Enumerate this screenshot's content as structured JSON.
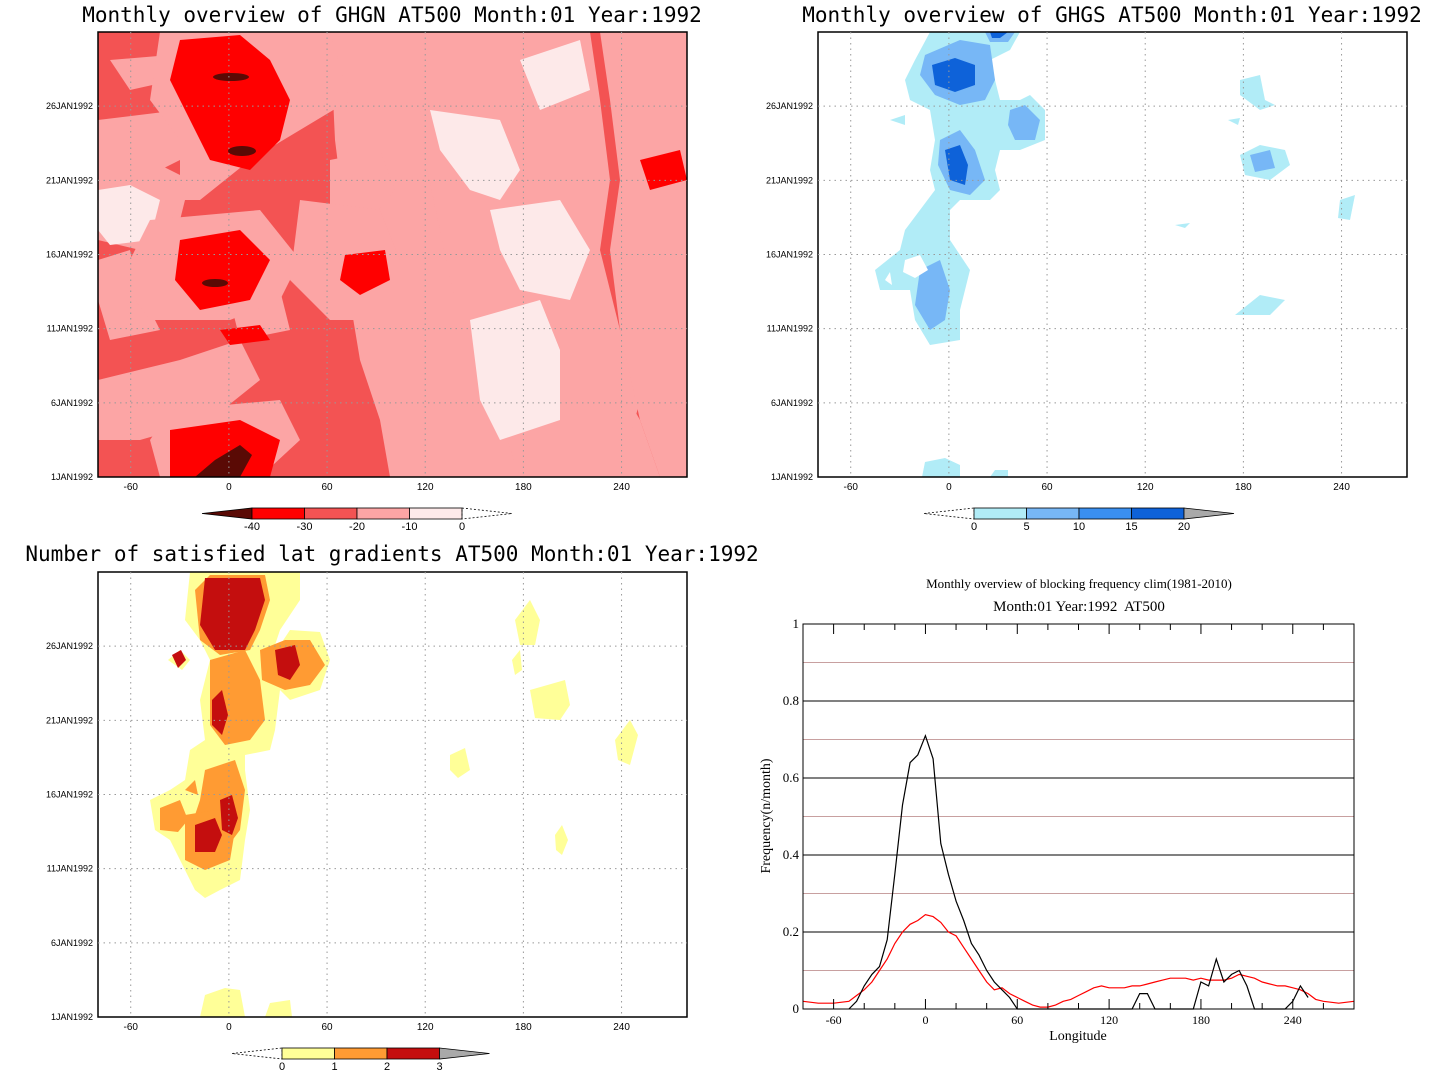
{
  "colors": {
    "ghgn": [
      "#5a0a05",
      "#ff0000",
      "#f35353",
      "#fca5a5",
      "#fde9e9"
    ],
    "ghgs": [
      "#b1ecf7",
      "#77b7f6",
      "#3a8ff0",
      "#0e62d9",
      "#a9a9a9"
    ],
    "grad": [
      "#ffff98",
      "#ff9b33",
      "#c40e0e",
      "#a9a9a9"
    ],
    "line_black": "#000000",
    "line_red": "#ff0000",
    "grid_dark": "#000000",
    "grid_light": "#c8a0a0"
  },
  "panels": [
    {
      "title": "Monthly overview of GHGN AT500 Month:01 Year:1992",
      "x_ticks": [
        "-60",
        "0",
        "60",
        "120",
        "180",
        "240"
      ],
      "y_ticks": [
        "1JAN1992",
        "6JAN1992",
        "11JAN1992",
        "16JAN1992",
        "21JAN1992",
        "26JAN1992"
      ],
      "colorbar": [
        "-40",
        "-30",
        "-20",
        "-10",
        "0"
      ]
    },
    {
      "title": "Monthly overview of GHGS AT500 Month:01 Year:1992",
      "x_ticks": [
        "-60",
        "0",
        "60",
        "120",
        "180",
        "240"
      ],
      "y_ticks": [
        "1JAN1992",
        "6JAN1992",
        "11JAN1992",
        "16JAN1992",
        "21JAN1992",
        "26JAN1992"
      ],
      "colorbar": [
        "0",
        "5",
        "10",
        "15",
        "20"
      ]
    },
    {
      "title": "Number of satisfied lat gradients AT500 Month:01 Year:1992",
      "x_ticks": [
        "-60",
        "0",
        "60",
        "120",
        "180",
        "240"
      ],
      "y_ticks": [
        "1JAN1992",
        "6JAN1992",
        "11JAN1992",
        "16JAN1992",
        "21JAN1992",
        "26JAN1992"
      ],
      "colorbar": [
        "0",
        "1",
        "2",
        "3"
      ]
    }
  ],
  "line_panel": {
    "title": "Monthly overview of blocking frequency clim(1981-2010)",
    "subtitle": "Month:01 Year:1992  AT500",
    "xlabel": "Longitude",
    "ylabel": "Frequency(n/month)",
    "x_ticks": [
      "-60",
      "0",
      "60",
      "120",
      "180",
      "240"
    ],
    "y_ticks": [
      "0",
      "0.2",
      "0.4",
      "0.6",
      "0.8",
      "1"
    ]
  },
  "chart_data": [
    {
      "type": "heatmap",
      "title": "Monthly overview of GHGN AT500 Month:01 Year:1992",
      "xlim": [
        -80,
        280
      ],
      "ylim": [
        "1JAN1992",
        "31JAN1992"
      ],
      "levels": [
        -40,
        -30,
        -20,
        -10,
        0
      ]
    },
    {
      "type": "heatmap",
      "title": "Monthly overview of GHGS AT500 Month:01 Year:1992",
      "xlim": [
        -80,
        280
      ],
      "ylim": [
        "1JAN1992",
        "31JAN1992"
      ],
      "levels": [
        0,
        5,
        10,
        15,
        20
      ]
    },
    {
      "type": "heatmap",
      "title": "Number of satisfied lat gradients AT500 Month:01 Year:1992",
      "xlim": [
        -80,
        280
      ],
      "ylim": [
        "1JAN1992",
        "31JAN1992"
      ],
      "levels": [
        0,
        1,
        2,
        3
      ]
    },
    {
      "type": "line",
      "title": "Monthly overview of blocking frequency clim(1981-2010)",
      "subtitle": "Month:01 Year:1992  AT500",
      "xlabel": "Longitude",
      "ylabel": "Frequency(n/month)",
      "xlim": [
        -80,
        280
      ],
      "ylim": [
        0,
        1
      ],
      "series": [
        {
          "color": "#000000",
          "x": [
            -50,
            -45,
            -40,
            -35,
            -30,
            -25,
            -20,
            -15,
            -10,
            -5,
            0,
            5,
            10,
            15,
            20,
            25,
            30,
            35,
            40,
            45,
            50,
            55,
            60,
            65,
            70,
            75,
            80,
            85,
            90,
            95,
            100,
            105,
            110,
            115,
            120,
            125,
            130,
            135,
            140,
            145,
            150,
            155,
            160,
            165,
            170,
            175,
            180,
            185,
            190,
            195,
            200,
            205,
            210,
            215,
            220,
            225,
            230,
            235,
            240,
            245,
            250
          ],
          "y": [
            0,
            0.02,
            0.06,
            0.09,
            0.11,
            0.18,
            0.35,
            0.53,
            0.64,
            0.66,
            0.71,
            0.65,
            0.43,
            0.35,
            0.28,
            0.23,
            0.17,
            0.14,
            0.1,
            0.07,
            0.05,
            0.03,
            0,
            0,
            0,
            0,
            0,
            0,
            0,
            0,
            0,
            0,
            0,
            0,
            0,
            0,
            0,
            0,
            0.04,
            0.04,
            0,
            0,
            0,
            0,
            0,
            0,
            0.07,
            0.06,
            0.13,
            0.07,
            0.09,
            0.1,
            0.06,
            0,
            0,
            0,
            0,
            0,
            0.02,
            0.06,
            0.03
          ]
        },
        {
          "color": "#ff0000",
          "x": [
            -80,
            -70,
            -60,
            -50,
            -45,
            -40,
            -35,
            -30,
            -25,
            -20,
            -15,
            -10,
            -5,
            0,
            5,
            10,
            15,
            20,
            25,
            30,
            35,
            40,
            45,
            50,
            55,
            60,
            65,
            70,
            75,
            80,
            85,
            90,
            95,
            100,
            105,
            110,
            115,
            120,
            125,
            130,
            135,
            140,
            145,
            150,
            155,
            160,
            165,
            170,
            175,
            180,
            185,
            190,
            195,
            200,
            205,
            210,
            215,
            220,
            225,
            230,
            235,
            240,
            245,
            250,
            255,
            260,
            270,
            280
          ],
          "y": [
            0.02,
            0.015,
            0.015,
            0.02,
            0.035,
            0.05,
            0.07,
            0.1,
            0.13,
            0.17,
            0.2,
            0.22,
            0.23,
            0.245,
            0.24,
            0.225,
            0.2,
            0.19,
            0.16,
            0.13,
            0.1,
            0.07,
            0.05,
            0.055,
            0.04,
            0.03,
            0.02,
            0.01,
            0.005,
            0.005,
            0.01,
            0.02,
            0.025,
            0.035,
            0.045,
            0.055,
            0.06,
            0.055,
            0.055,
            0.055,
            0.06,
            0.06,
            0.065,
            0.07,
            0.075,
            0.08,
            0.08,
            0.08,
            0.075,
            0.08,
            0.075,
            0.075,
            0.075,
            0.08,
            0.09,
            0.085,
            0.08,
            0.07,
            0.065,
            0.06,
            0.06,
            0.055,
            0.05,
            0.04,
            0.025,
            0.02,
            0.015,
            0.02
          ]
        }
      ]
    }
  ]
}
